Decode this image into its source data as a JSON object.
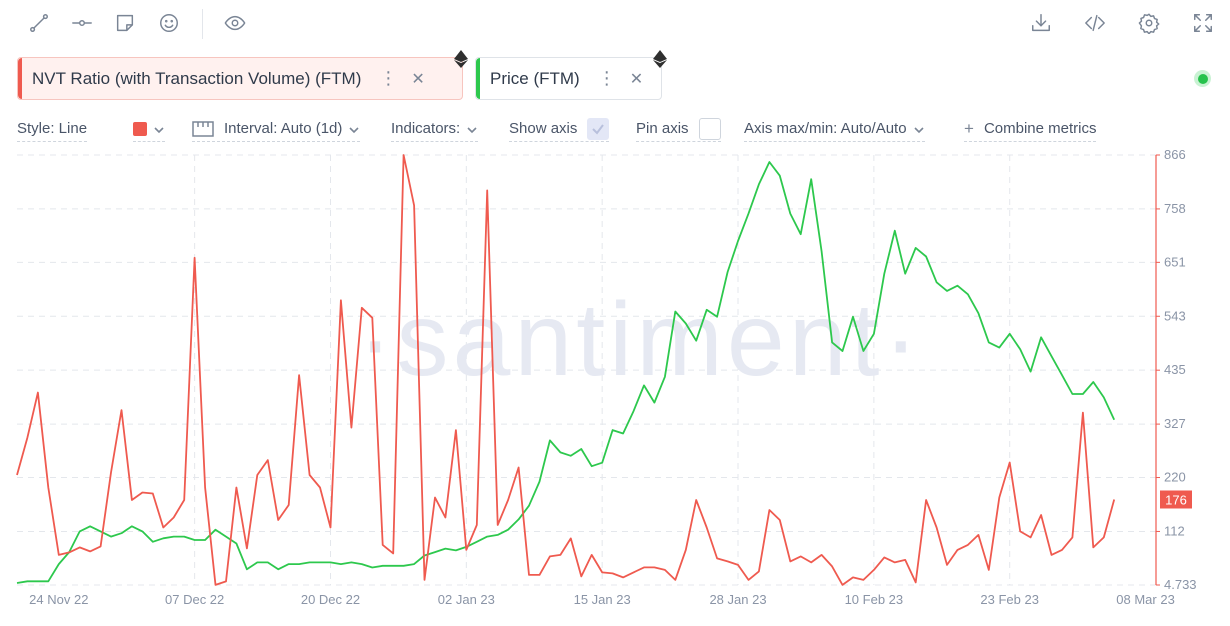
{
  "toolbar": {
    "left_icons": [
      "line-draw-icon",
      "horizontal-line-icon",
      "note-icon",
      "emoji-icon",
      "eye-icon"
    ],
    "right_icons": [
      "download-icon",
      "code-icon",
      "gear-icon",
      "fullscreen-icon"
    ]
  },
  "metrics": [
    {
      "label": "NVT Ratio (with Transaction Volume) (FTM)",
      "color": "#ef5a4f",
      "more": "⋮",
      "close": "✕"
    },
    {
      "label": "Price (FTM)",
      "color": "#2dc84d",
      "more": "⋮",
      "close": "✕"
    }
  ],
  "settings": {
    "style_label": "Style: Line",
    "swatch_color": "#ef5a4f",
    "interval_label": "Interval: Auto (1d)",
    "indicators_label": "Indicators:",
    "show_axis_label": "Show axis",
    "show_axis_checked": true,
    "pin_axis_label": "Pin axis",
    "pin_axis_checked": false,
    "axis_label": "Axis max/min: Auto/Auto",
    "combine_label": "Combine metrics",
    "combine_prefix": "+"
  },
  "watermark": "·santiment·",
  "chart_data": {
    "type": "line",
    "x_start": "2022-11-20",
    "x_end": "2023-03-09",
    "x_tick_labels": [
      {
        "date": "2022-11-24",
        "label": "24 Nov 22"
      },
      {
        "date": "2022-12-07",
        "label": "07 Dec 22"
      },
      {
        "date": "2022-12-20",
        "label": "20 Dec 22"
      },
      {
        "date": "2023-01-02",
        "label": "02 Jan 23"
      },
      {
        "date": "2023-01-15",
        "label": "15 Jan 23"
      },
      {
        "date": "2023-01-28",
        "label": "28 Jan 23"
      },
      {
        "date": "2023-02-10",
        "label": "10 Feb 23"
      },
      {
        "date": "2023-02-23",
        "label": "23 Feb 23"
      },
      {
        "date": "2023-03-08",
        "label": "08 Mar 23"
      }
    ],
    "y_axis": {
      "side": "right",
      "min": 4.733,
      "max": 866,
      "color": "#ef5a4f",
      "tick_labels": [
        "866",
        "758",
        "651",
        "543",
        "435",
        "327",
        "220",
        "112",
        "4.733"
      ],
      "tick_values": [
        866,
        758,
        651,
        543,
        435,
        327,
        220,
        112,
        4.733
      ]
    },
    "grid": true,
    "last_value_label": "176",
    "series": [
      {
        "name": "NVT Ratio (with Transaction Volume) (FTM)",
        "color": "#ef5a4f",
        "y_axis": "right",
        "start_date": "2022-11-20",
        "step_days": 1,
        "values": [
          225,
          300,
          390,
          200,
          65,
          70,
          80,
          72,
          82,
          230,
          355,
          175,
          190,
          188,
          120,
          140,
          175,
          660,
          200,
          5,
          12,
          200,
          78,
          225,
          255,
          135,
          165,
          425,
          225,
          200,
          120,
          575,
          320,
          560,
          540,
          85,
          68,
          866,
          765,
          15,
          180,
          140,
          315,
          75,
          125,
          795,
          125,
          175,
          240,
          25,
          25,
          62,
          65,
          98,
          22,
          65,
          30,
          28,
          20,
          30,
          40,
          40,
          35,
          15,
          75,
          175,
          120,
          58,
          52,
          45,
          15,
          32,
          155,
          135,
          52,
          62,
          50,
          65,
          42,
          5,
          20,
          15,
          35,
          60,
          50,
          55,
          10,
          175,
          120,
          45,
          75,
          85,
          105,
          35,
          180,
          250,
          112,
          100,
          145,
          65,
          75,
          100,
          350,
          80,
          100,
          176
        ]
      },
      {
        "name": "Price (FTM)",
        "color": "#2dc84d",
        "y_axis": "left",
        "y_axis_shown": false,
        "start_date": "2022-11-20",
        "step_days": 1,
        "values": [
          0.185,
          0.186,
          0.186,
          0.186,
          0.196,
          0.203,
          0.215,
          0.218,
          0.215,
          0.212,
          0.214,
          0.218,
          0.215,
          0.209,
          0.211,
          0.212,
          0.212,
          0.21,
          0.21,
          0.216,
          0.212,
          0.208,
          0.193,
          0.197,
          0.197,
          0.193,
          0.196,
          0.196,
          0.197,
          0.197,
          0.197,
          0.196,
          0.197,
          0.196,
          0.194,
          0.195,
          0.195,
          0.195,
          0.196,
          0.201,
          0.203,
          0.205,
          0.204,
          0.206,
          0.209,
          0.212,
          0.213,
          0.216,
          0.222,
          0.23,
          0.244,
          0.268,
          0.261,
          0.259,
          0.263,
          0.253,
          0.255,
          0.274,
          0.272,
          0.285,
          0.3,
          0.29,
          0.305,
          0.343,
          0.336,
          0.326,
          0.344,
          0.34,
          0.366,
          0.384,
          0.4,
          0.417,
          0.43,
          0.422,
          0.4,
          0.388,
          0.42,
          0.378,
          0.325,
          0.32,
          0.34,
          0.32,
          0.33,
          0.365,
          0.39,
          0.365,
          0.38,
          0.375,
          0.36,
          0.355,
          0.358,
          0.353,
          0.342,
          0.325,
          0.322,
          0.33,
          0.321,
          0.308,
          0.328,
          0.317,
          0.306,
          0.295,
          0.295,
          0.302,
          0.293,
          0.28
        ]
      }
    ]
  }
}
